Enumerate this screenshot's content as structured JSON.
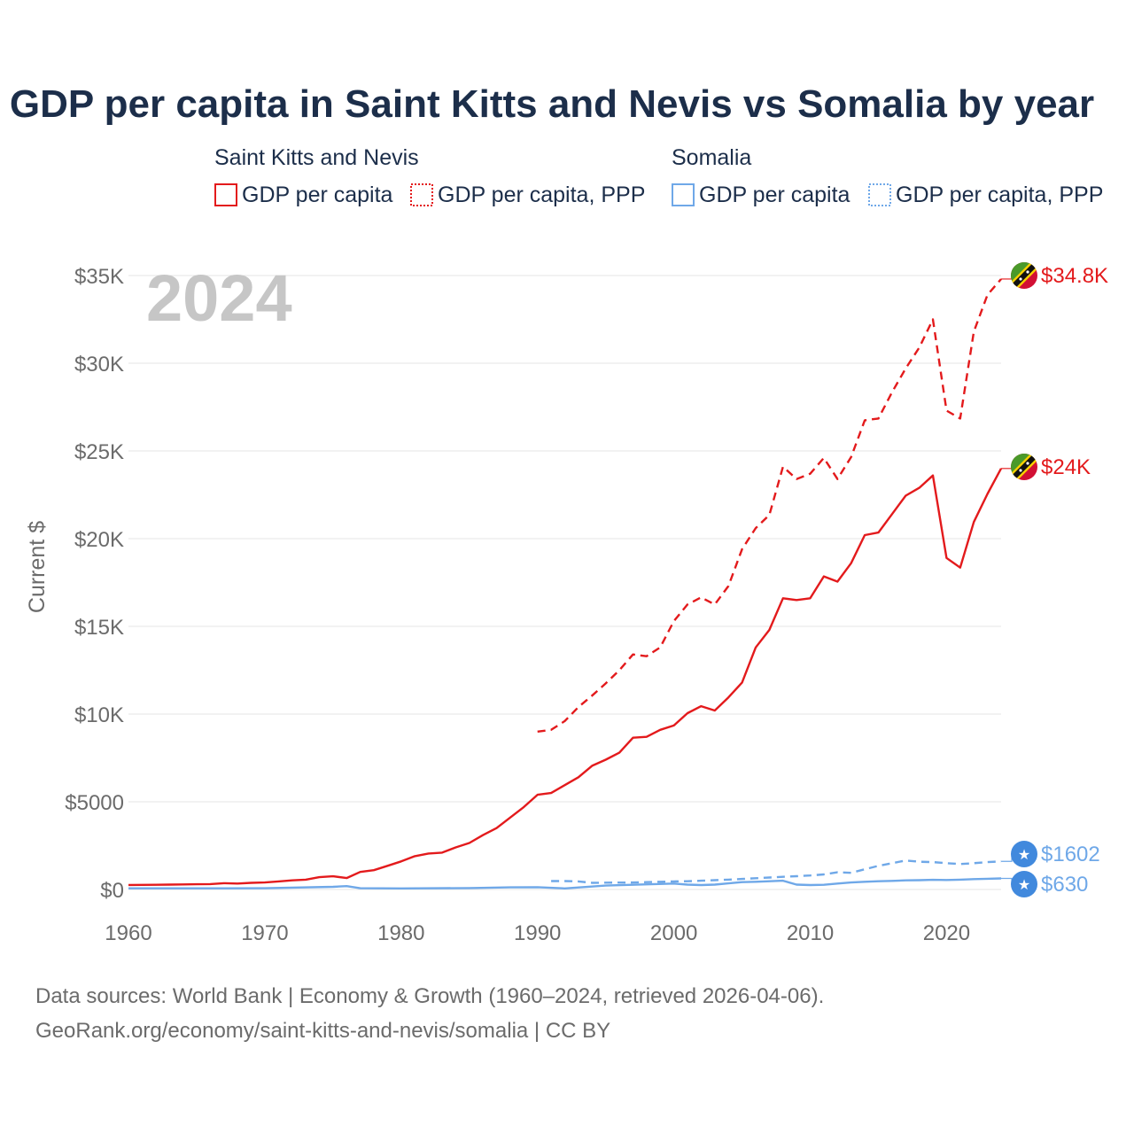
{
  "chart_data": {
    "type": "line",
    "title": "GDP per capita in Saint Kitts and Nevis vs Somalia by year",
    "year_label": "2024",
    "ylabel": "Current $",
    "xlim": [
      1960,
      2024
    ],
    "ylim": [
      0,
      35000
    ],
    "x_ticks": [
      1960,
      1970,
      1980,
      1990,
      2000,
      2010,
      2020
    ],
    "x_tick_labels": [
      "1960",
      "1970",
      "1980",
      "1990",
      "2000",
      "2010",
      "2020"
    ],
    "y_ticks": [
      0,
      5000,
      10000,
      15000,
      20000,
      25000,
      30000,
      35000
    ],
    "y_tick_labels": [
      "$0",
      "$5000",
      "$10K",
      "$15K",
      "$20K",
      "$25K",
      "$30K",
      "$35K"
    ],
    "legend_groups": [
      {
        "country": "Saint Kitts and Nevis",
        "items": [
          "GDP per capita",
          "GDP per capita, PPP"
        ]
      },
      {
        "country": "Somalia",
        "items": [
          "GDP per capita",
          "GDP per capita, PPP"
        ]
      }
    ],
    "series": [
      {
        "name": "Saint Kitts and Nevis GDP per capita",
        "color": "#e31a1c",
        "dashed": false,
        "end_label": "$24K",
        "x": [
          1960,
          1961,
          1962,
          1963,
          1964,
          1965,
          1966,
          1967,
          1968,
          1969,
          1970,
          1971,
          1972,
          1973,
          1974,
          1975,
          1976,
          1977,
          1978,
          1979,
          1980,
          1981,
          1982,
          1983,
          1984,
          1985,
          1986,
          1987,
          1988,
          1989,
          1990,
          1991,
          1992,
          1993,
          1994,
          1995,
          1996,
          1997,
          1998,
          1999,
          2000,
          2001,
          2002,
          2003,
          2004,
          2005,
          2006,
          2007,
          2008,
          2009,
          2010,
          2011,
          2012,
          2013,
          2014,
          2015,
          2016,
          2017,
          2018,
          2019,
          2020,
          2021,
          2022,
          2023,
          2024
        ],
        "y": [
          260,
          265,
          270,
          280,
          290,
          300,
          310,
          360,
          340,
          380,
          400,
          460,
          520,
          560,
          700,
          750,
          650,
          1000,
          1100,
          1350,
          1600,
          1900,
          2050,
          2100,
          2400,
          2650,
          3100,
          3500,
          4100,
          4700,
          5400,
          5500,
          5950,
          6400,
          7050,
          7400,
          7800,
          8650,
          8700,
          9100,
          9350,
          10050,
          10450,
          10200,
          10950,
          11800,
          13800,
          14800,
          16600,
          16500,
          16600,
          17850,
          17550,
          18600,
          20200,
          20350,
          21400,
          22450,
          22900,
          23600,
          18900,
          18350,
          20950,
          22550,
          24000
        ]
      },
      {
        "name": "Saint Kitts and Nevis GDP per capita, PPP",
        "color": "#e31a1c",
        "dashed": true,
        "end_label": "$34.8K",
        "x": [
          1990,
          1991,
          1992,
          1993,
          1994,
          1995,
          1996,
          1997,
          1998,
          1999,
          2000,
          2001,
          2002,
          2003,
          2004,
          2005,
          2006,
          2007,
          2008,
          2009,
          2010,
          2011,
          2012,
          2013,
          2014,
          2015,
          2016,
          2017,
          2018,
          2019,
          2020,
          2021,
          2022,
          2023,
          2024
        ],
        "y": [
          9000,
          9100,
          9600,
          10400,
          11050,
          11750,
          12500,
          13400,
          13300,
          13800,
          15300,
          16250,
          16650,
          16250,
          17300,
          19400,
          20600,
          21350,
          24100,
          23400,
          23700,
          24600,
          23400,
          24650,
          26750,
          26850,
          28350,
          29700,
          30900,
          32500,
          27300,
          26850,
          31800,
          33900,
          34800
        ]
      },
      {
        "name": "Somalia GDP per capita",
        "color": "#6fa8e8",
        "dashed": false,
        "end_label": "$630",
        "x": [
          1960,
          1965,
          1970,
          1975,
          1976,
          1977,
          1980,
          1985,
          1988,
          1990,
          1992,
          1995,
          2000,
          2001,
          2002,
          2003,
          2004,
          2005,
          2006,
          2007,
          2008,
          2009,
          2010,
          2011,
          2012,
          2013,
          2014,
          2015,
          2016,
          2017,
          2018,
          2019,
          2020,
          2021,
          2022,
          2023,
          2024
        ],
        "y": [
          65,
          65,
          70,
          150,
          190,
          70,
          60,
          80,
          120,
          130,
          60,
          220,
          340,
          280,
          250,
          280,
          350,
          420,
          440,
          470,
          500,
          280,
          250,
          270,
          340,
          400,
          440,
          470,
          490,
          520,
          530,
          550,
          540,
          560,
          590,
          610,
          630
        ]
      },
      {
        "name": "Somalia GDP per capita, PPP",
        "color": "#6fa8e8",
        "dashed": true,
        "end_label": "$1602",
        "x": [
          1991,
          1992,
          1993,
          1994,
          1995,
          1996,
          1997,
          1998,
          1999,
          2000,
          2001,
          2002,
          2003,
          2004,
          2005,
          2006,
          2007,
          2008,
          2009,
          2010,
          2011,
          2012,
          2013,
          2014,
          2015,
          2016,
          2017,
          2018,
          2019,
          2020,
          2021,
          2022,
          2023,
          2024
        ],
        "y": [
          480,
          480,
          460,
          380,
          390,
          395,
          400,
          420,
          440,
          460,
          470,
          500,
          530,
          560,
          600,
          640,
          680,
          720,
          760,
          800,
          860,
          980,
          950,
          1150,
          1350,
          1500,
          1650,
          1580,
          1560,
          1500,
          1450,
          1500,
          1560,
          1602
        ]
      }
    ]
  },
  "footer": {
    "line1": "Data sources: World Bank | Economy & Growth (1960–2024, retrieved 2026-04-06).",
    "line2": "GeoRank.org/economy/saint-kitts-and-nevis/somalia | CC BY"
  }
}
